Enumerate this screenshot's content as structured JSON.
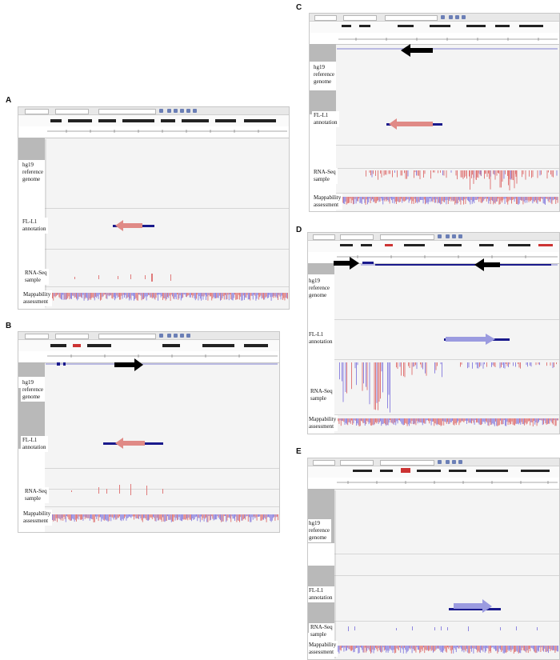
{
  "panels": [
    {
      "id": "A",
      "letter": "A",
      "labels": {
        "reference": "hg19\nreference\ngenome",
        "annotation": "FL-L1\nannotation",
        "rnaseq": "RNA-Seq\nsample",
        "mappability": "Mappability\nassessment"
      }
    },
    {
      "id": "B",
      "letter": "B",
      "labels": {
        "reference": "hg19\nreference\ngenome",
        "annotation": "FL-L1\nannotation",
        "rnaseq": "RNA-Seq\nsample",
        "mappability": "Mappability\nassessment"
      }
    },
    {
      "id": "C",
      "letter": "C",
      "labels": {
        "reference": "hg19\nreference\ngenome",
        "annotation": "FL-L1\nannotation",
        "rnaseq": "RNA-Seq\nsample",
        "mappability": "Mappability\nassessment"
      }
    },
    {
      "id": "D",
      "letter": "D",
      "labels": {
        "reference": "hg19\nreference\ngenome",
        "annotation": "FL-L1\nannotation",
        "rnaseq": "RNA-Seq\nsample",
        "mappability": "Mappability\nassessment"
      }
    },
    {
      "id": "E",
      "letter": "E",
      "labels": {
        "reference": "hg19\nreference\ngenome",
        "annotation": "FL-L1\nannotation",
        "rnaseq": "RNA-Seq\nsample",
        "mappability": "Mappability\nassessment"
      }
    }
  ],
  "colors": {
    "forward_arrow": "#9b9be0",
    "reverse_arrow": "#e08a86",
    "genome_arrow": "#000000",
    "annotation_bar": "#1a1a8c",
    "read_red": "#e07a7a",
    "read_blue": "#8f86e0"
  }
}
